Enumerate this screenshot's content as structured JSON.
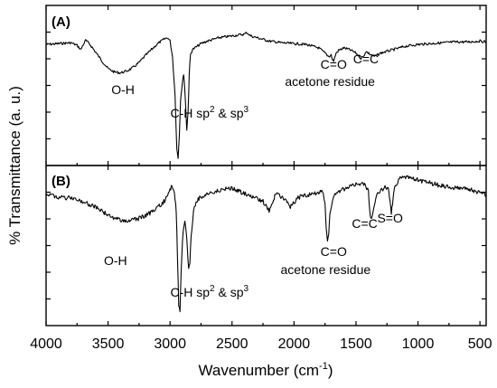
{
  "chart_data": {
    "type": "line",
    "xlabel": "Wavenumber (cm",
    "xlabel_sup": "-1",
    "xlabel_tail": ")",
    "ylabel": "% Transmittance (a. u.)",
    "xlim": [
      4000,
      450
    ],
    "x_reversed": true,
    "grid": false,
    "legend": "none",
    "x_ticks": [
      4000,
      3500,
      3000,
      2500,
      2000,
      1500,
      1000,
      500
    ],
    "panels": [
      {
        "label": "(A)",
        "series": [
          {
            "x": [
              4000,
              3900,
              3800,
              3750,
              3720,
              3700,
              3680,
              3660,
              3640,
              3600,
              3550,
              3500,
              3450,
              3400,
              3350,
              3300,
              3250,
              3200,
              3150,
              3100,
              3050,
              3020,
              3000,
              2980,
              2960,
              2945,
              2935,
              2925,
              2915,
              2900,
              2890,
              2880,
              2870,
              2865,
              2855,
              2845,
              2835,
              2820,
              2800,
              2750,
              2700,
              2600,
              2500,
              2450,
              2400,
              2380,
              2350,
              2300,
              2200,
              2100,
              2000,
              1900,
              1800,
              1750,
              1720,
              1700,
              1690,
              1680,
              1660,
              1640,
              1600,
              1550,
              1500,
              1460,
              1440,
              1420,
              1380,
              1350,
              1300,
              1250,
              1200,
              1150,
              1100,
              1050,
              1000,
              900,
              800,
              700,
              600,
              500,
              450
            ],
            "y": [
              4,
              5,
              6,
              3,
              -2,
              4,
              9,
              6,
              3,
              -5,
              -15,
              -24,
              -28,
              -29,
              -27,
              -23,
              -17,
              -9,
              -2,
              5,
              10,
              12,
              8,
              -10,
              -55,
              -118,
              -128,
              -100,
              -60,
              -40,
              -30,
              -50,
              -80,
              -95,
              -75,
              -30,
              -8,
              -2,
              0,
              5,
              8,
              12,
              14,
              15,
              16,
              18,
              14,
              12,
              8,
              6,
              5,
              4,
              0,
              -6,
              -10,
              -8,
              -14,
              -15,
              -6,
              -3,
              0,
              -2,
              -6,
              -12,
              -10,
              -4,
              -8,
              -10,
              -6,
              -4,
              -2,
              0,
              2,
              3,
              4,
              5,
              6,
              7,
              7,
              8,
              7
            ]
          }
        ],
        "annotations": [
          {
            "text": "O-H",
            "x": 3380
          },
          {
            "text": "C-H sp",
            "sup1": "2",
            "mid": " & sp",
            "sup2": "3",
            "x": 2930
          },
          {
            "text": "C=O",
            "x": 1680
          },
          {
            "text": "acetone residue",
            "x": 1710
          },
          {
            "text": "C=C",
            "x": 1420
          }
        ]
      },
      {
        "label": "(B)",
        "series": [
          {
            "x": [
              4000,
              3950,
              3900,
              3850,
              3800,
              3750,
              3700,
              3650,
              3600,
              3550,
              3500,
              3450,
              3400,
              3350,
              3300,
              3250,
              3200,
              3150,
              3100,
              3050,
              3020,
              3000,
              2985,
              2965,
              2950,
              2940,
              2930,
              2920,
              2910,
              2900,
              2890,
              2880,
              2870,
              2860,
              2850,
              2840,
              2830,
              2810,
              2790,
              2750,
              2700,
              2650,
              2600,
              2550,
              2500,
              2450,
              2400,
              2350,
              2300,
              2250,
              2200,
              2175,
              2160,
              2150,
              2100,
              2050,
              2030,
              2000,
              1980,
              1950,
              1900,
              1850,
              1800,
              1770,
              1750,
              1740,
              1730,
              1720,
              1710,
              1690,
              1670,
              1650,
              1600,
              1550,
              1500,
              1450,
              1420,
              1400,
              1385,
              1375,
              1360,
              1340,
              1300,
              1260,
              1240,
              1225,
              1215,
              1205,
              1190,
              1170,
              1150,
              1100,
              1050,
              1000,
              950,
              900,
              850,
              800,
              750,
              700,
              650,
              600,
              550,
              500,
              470,
              450
            ],
            "y": [
              2,
              0,
              -2,
              -4,
              -3,
              -6,
              -8,
              -12,
              -15,
              -20,
              -26,
              -30,
              -32,
              -33,
              -32,
              -30,
              -26,
              -22,
              -16,
              -8,
              -2,
              8,
              12,
              5,
              -20,
              -80,
              -145,
              -150,
              -100,
              -60,
              -42,
              -35,
              -45,
              -70,
              -96,
              -88,
              -55,
              -20,
              -8,
              -2,
              2,
              4,
              6,
              8,
              9,
              6,
              2,
              0,
              -4,
              -8,
              -20,
              -10,
              -4,
              2,
              -2,
              -8,
              -15,
              -10,
              -4,
              -2,
              0,
              2,
              4,
              6,
              -10,
              -45,
              -62,
              -50,
              -25,
              -6,
              0,
              4,
              8,
              12,
              14,
              16,
              13,
              4,
              -25,
              -32,
              -20,
              -2,
              6,
              12,
              8,
              -6,
              -22,
              -10,
              8,
              16,
              22,
              24,
              22,
              20,
              18,
              16,
              14,
              12,
              11,
              10,
              9,
              8,
              6,
              4,
              2,
              0
            ]
          }
        ],
        "annotations": [
          {
            "text": "O-H",
            "x": 3440
          },
          {
            "text": "C-H sp",
            "sup1": "2",
            "mid": " & sp",
            "sup2": "3",
            "x": 2930
          },
          {
            "text": "C=O",
            "x": 1680
          },
          {
            "text": "acetone residue",
            "x": 1745
          },
          {
            "text": "C=C",
            "x": 1430
          },
          {
            "text": "S=O",
            "x": 1225
          }
        ]
      }
    ]
  }
}
